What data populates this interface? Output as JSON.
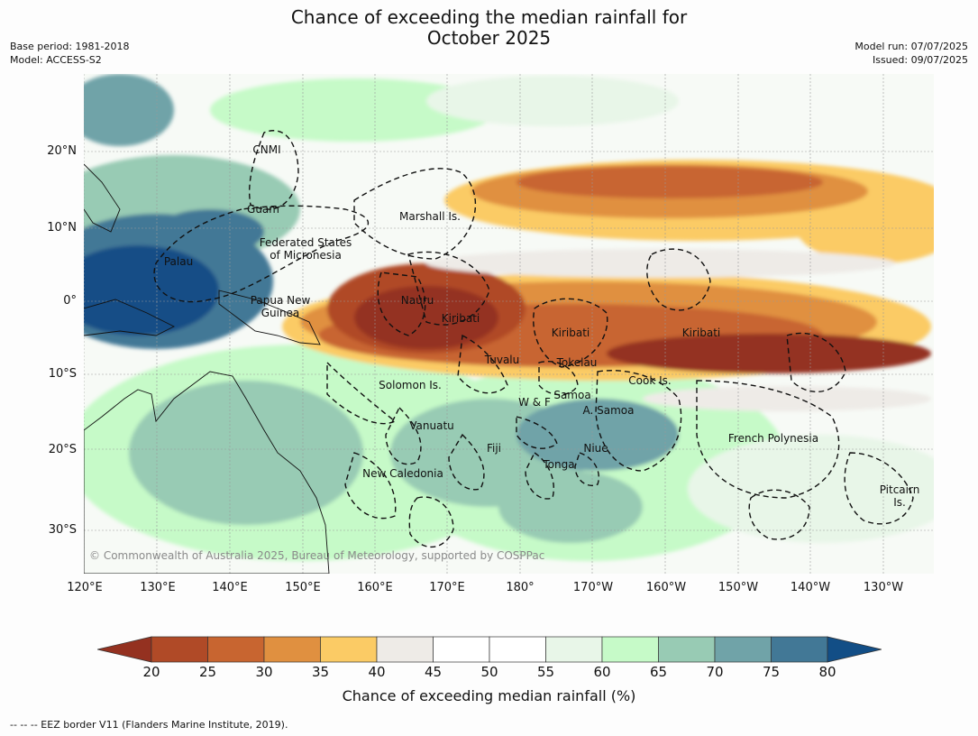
{
  "title_line1": "Chance of exceeding the median rainfall for",
  "title_line2": "October 2025",
  "meta_left": [
    "Base period: 1981-2018",
    "Model: ACCESS-S2"
  ],
  "meta_right": [
    "Model run: 07/07/2025",
    "Issued: 09/07/2025"
  ],
  "lat_labels": [
    "20°N",
    "10°N",
    "0°",
    "10°S",
    "20°S",
    "30°S"
  ],
  "lon_labels": [
    "120°E",
    "130°E",
    "140°E",
    "150°E",
    "160°E",
    "170°E",
    "180°",
    "170°W",
    "160°W",
    "150°W",
    "140°W",
    "130°W"
  ],
  "regions": {
    "cnmi": "CNMI",
    "guam": "Guam",
    "fsm_1": "Federated States",
    "fsm_2": "of Micronesia",
    "palau": "Palau",
    "marshall": "Marshall Is.",
    "png_1": "Papua New",
    "png_2": "Guinea",
    "nauru": "Nauru",
    "kiribati_w": "Kiribati",
    "kiribati_c": "Kiribati",
    "kiribati_e": "Kiribati",
    "tuvalu": "Tuvalu",
    "tokelau": "Tokelau",
    "solomon": "Solomon Is.",
    "cook": "Cook Is.",
    "wf": "W & F",
    "samoa": "Samoa",
    "asamoa": "A. Samoa",
    "vanuatu": "Vanuatu",
    "fiji": "Fiji",
    "niue": "Niue",
    "tonga": "Tonga",
    "fp": "French Polynesia",
    "newcal": "New Caledonia",
    "pitcairn_1": "Pitcairn",
    "pitcairn_2": "Is."
  },
  "copyright": "© Commonwealth of Australia 2025, Bureau of Meteorology, supported by COSPPac",
  "colorbar": {
    "ticks": [
      "20",
      "25",
      "30",
      "35",
      "40",
      "45",
      "50",
      "55",
      "60",
      "65",
      "70",
      "75",
      "80"
    ],
    "colors": [
      "#943120",
      "#b04a27",
      "#c86530",
      "#e09040",
      "#fbcb65",
      "#eeebe7",
      "#ffffff",
      "#ffffff",
      "#e8f6e8",
      "#c6fac8",
      "#98cbb4",
      "#70a3a8",
      "#427896",
      "#124e86"
    ],
    "label": "Chance of exceeding median rainfall (%)"
  },
  "footer": "--  --  -- EEZ border V11 (Flanders Marine Institute, 2019)."
}
